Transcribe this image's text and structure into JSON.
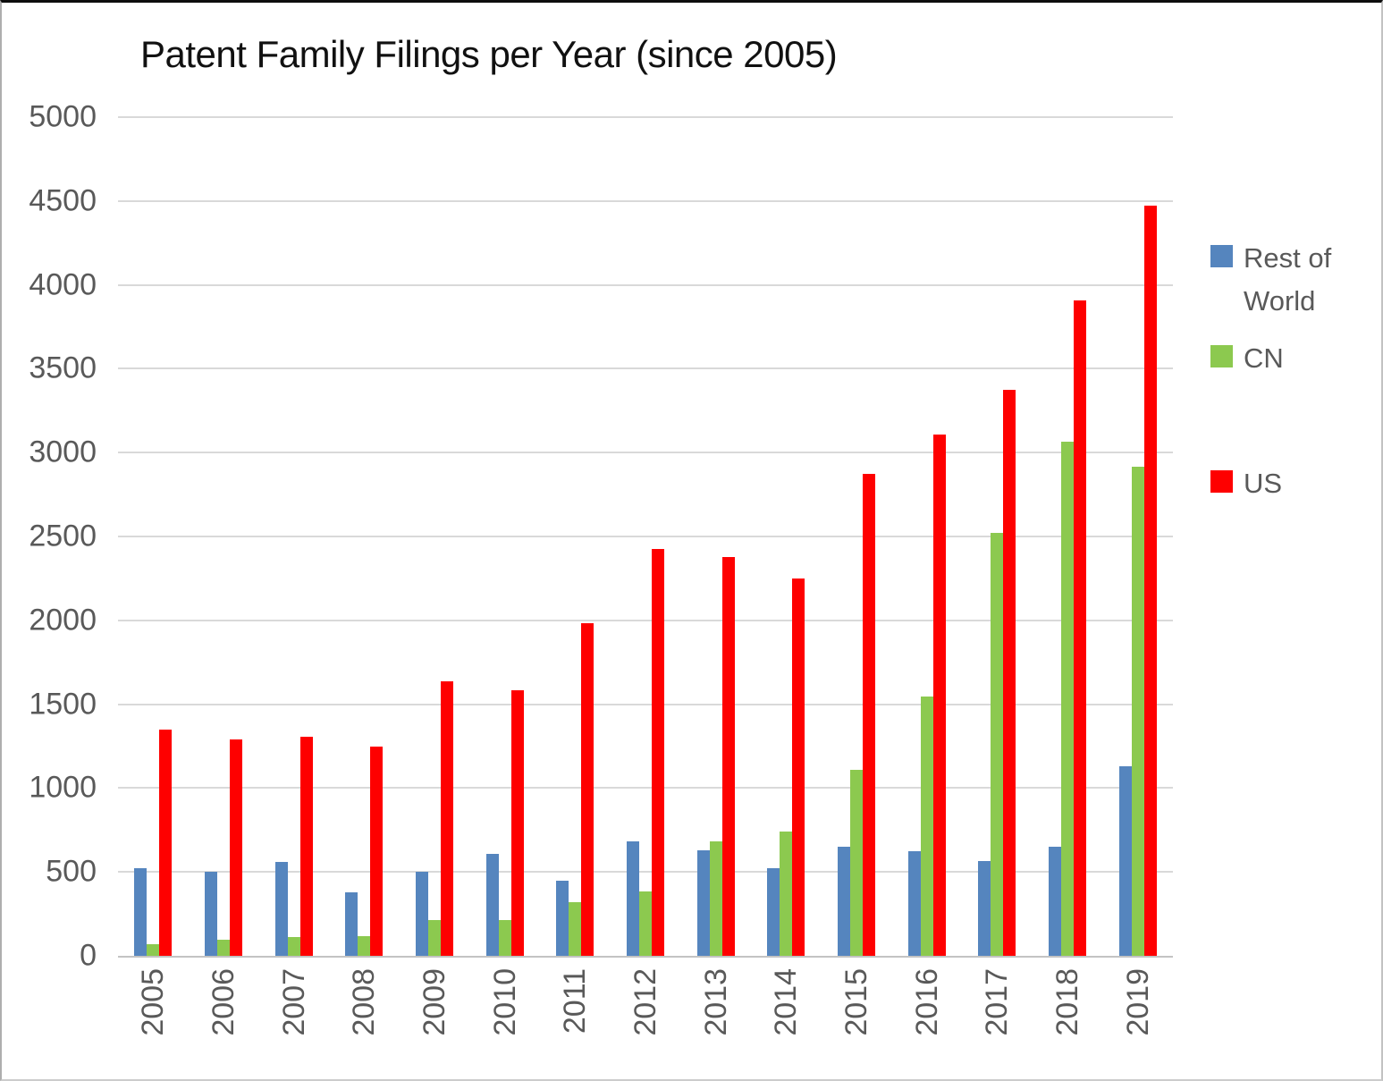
{
  "title": "Patent Family Filings per Year (since 2005)",
  "colors": {
    "rest_of_world": "#5585BE",
    "cn": "#8CC94F",
    "us": "#FE0000",
    "gridline": "#d9d9d9",
    "axis_text": "#595959"
  },
  "legend": {
    "position": "right",
    "items": [
      {
        "label": "Rest of World",
        "color": "#5585BE",
        "key": "row"
      },
      {
        "label": "CN",
        "color": "#8CC94F",
        "key": "cn"
      },
      {
        "label": "US",
        "color": "#FE0000",
        "key": "us"
      }
    ]
  },
  "chart_data": {
    "type": "bar",
    "title": "Patent Family Filings per Year (since 2005)",
    "xlabel": "",
    "ylabel": "",
    "ylim": [
      0,
      5000
    ],
    "y_ticks": [
      0,
      500,
      1000,
      1500,
      2000,
      2500,
      3000,
      3500,
      4000,
      4500,
      5000
    ],
    "grid": "horizontal",
    "legend_position": "right",
    "categories": [
      "2005",
      "2006",
      "2007",
      "2008",
      "2009",
      "2010",
      "2011",
      "2012",
      "2013",
      "2014",
      "2015",
      "2016",
      "2017",
      "2018",
      "2019"
    ],
    "series": [
      {
        "name": "Rest of World",
        "color": "#5585BE",
        "values": [
          525,
          500,
          560,
          380,
          500,
          610,
          450,
          680,
          630,
          525,
          650,
          625,
          565,
          650,
          1130
        ]
      },
      {
        "name": "CN",
        "color": "#8CC94F",
        "values": [
          70,
          95,
          110,
          120,
          215,
          215,
          320,
          385,
          685,
          740,
          1110,
          1545,
          2520,
          3065,
          2915
        ]
      },
      {
        "name": "US",
        "color": "#FE0000",
        "values": [
          1350,
          1290,
          1305,
          1245,
          1635,
          1585,
          1985,
          2425,
          2375,
          2250,
          2875,
          3110,
          3375,
          3905,
          4470
        ]
      }
    ]
  }
}
